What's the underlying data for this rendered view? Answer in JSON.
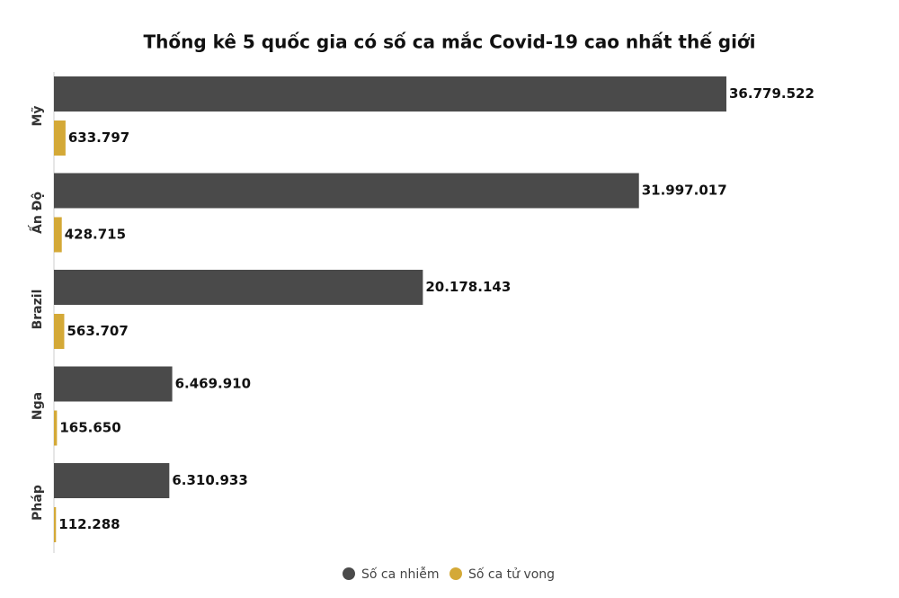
{
  "chart_data": {
    "type": "bar",
    "orientation": "horizontal",
    "title": "Thống kê 5 quốc gia có số ca mắc Covid-19 cao nhất thế giới",
    "categories": [
      "Mỹ",
      "Ấn Độ",
      "Brazil",
      "Nga",
      "Pháp"
    ],
    "series": [
      {
        "name": "Số ca nhiễm",
        "color": "#4a4a4a",
        "values": [
          36779522,
          31997017,
          20178143,
          6469910,
          6310933
        ],
        "value_labels": [
          "36.779.522",
          "31.997.017",
          "20.178.143",
          "6.469.910",
          "6.310.933"
        ]
      },
      {
        "name": "Số ca tử vong",
        "color": "#d4a937",
        "values": [
          633797,
          428715,
          563707,
          165650,
          112288
        ],
        "value_labels": [
          "633.797",
          "428.715",
          "563.707",
          "165.650",
          "112.288"
        ]
      }
    ]
  }
}
